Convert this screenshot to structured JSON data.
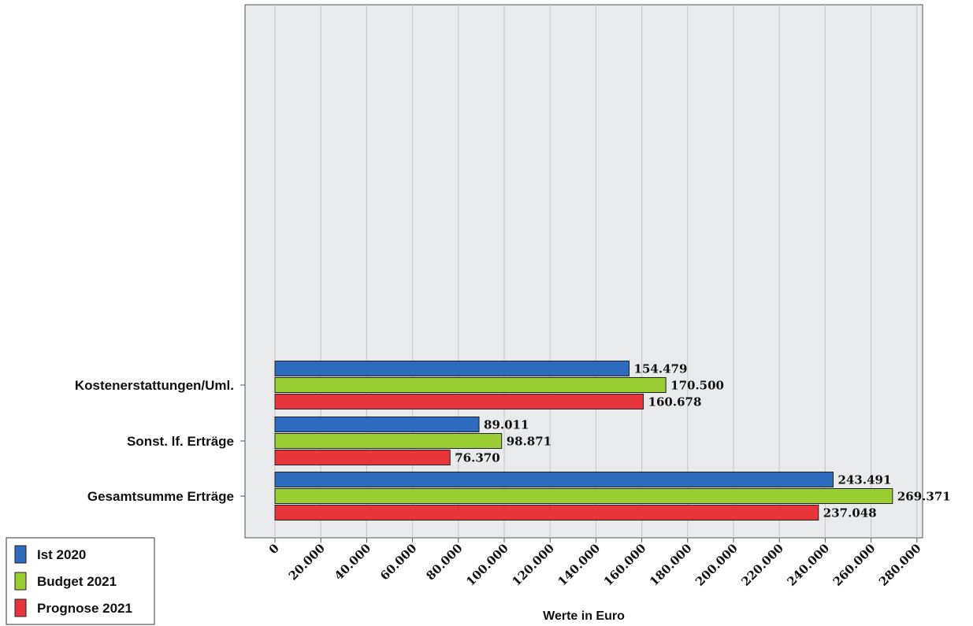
{
  "chart_data": {
    "type": "bar",
    "orientation": "horizontal",
    "categories": [
      "Kostenerstattungen/Uml.",
      "Sonst. lf. Erträge",
      "Gesamtsumme Erträge"
    ],
    "series": [
      {
        "name": "Ist 2020",
        "color": "#2d6bbf",
        "values": [
          154479,
          89011,
          243491
        ],
        "labels": [
          "154.479",
          "89.011",
          "243.491"
        ]
      },
      {
        "name": "Budget 2021",
        "color": "#9acd32",
        "values": [
          170500,
          98871,
          269371
        ],
        "labels": [
          "170.500",
          "98.871",
          "269.371"
        ]
      },
      {
        "name": "Prognose 2021",
        "color": "#e8353b",
        "values": [
          160678,
          76370,
          237048
        ],
        "labels": [
          "160.678",
          "76.370",
          "237.048"
        ]
      }
    ],
    "xlabel": "Werte in Euro",
    "xlim": [
      0,
      282000
    ],
    "ticks": [
      0,
      20000,
      40000,
      60000,
      80000,
      100000,
      120000,
      140000,
      160000,
      180000,
      200000,
      220000,
      240000,
      260000,
      280000
    ],
    "tick_labels": [
      "0",
      "20.000",
      "40.000",
      "60.000",
      "80.000",
      "100.000",
      "120.000",
      "140.000",
      "160.000",
      "180.000",
      "200.000",
      "220.000",
      "240.000",
      "260.000",
      "280.000"
    ],
    "grid": true,
    "legend_position": "bottom-left",
    "plot_background": "#e9eaec",
    "grid_color": "#c5c7cb"
  }
}
